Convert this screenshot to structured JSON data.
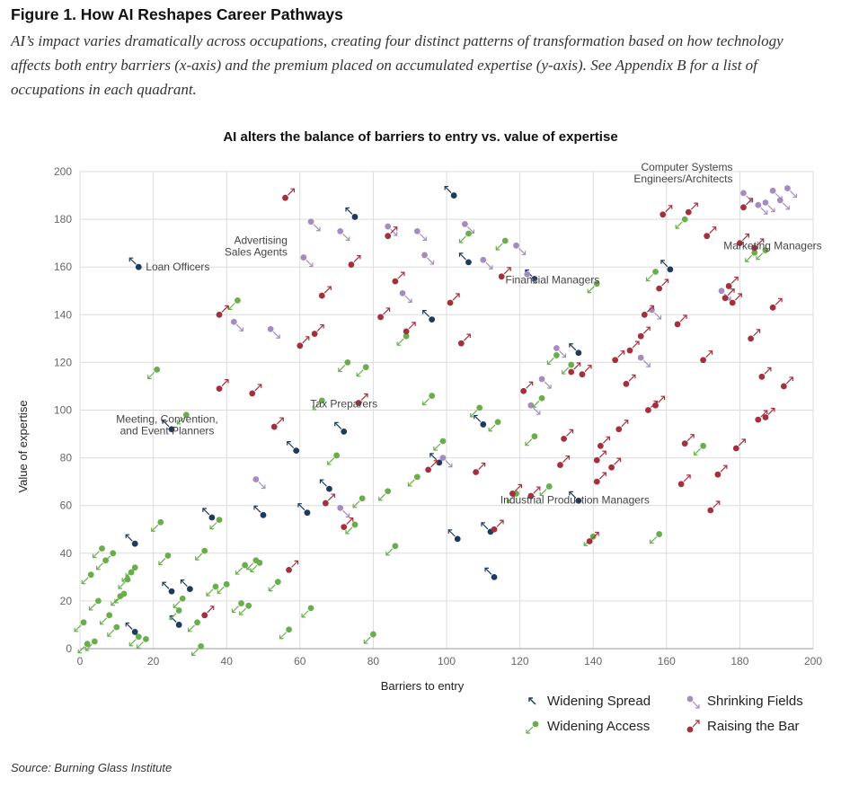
{
  "figure": {
    "title": "Figure 1. How AI Reshapes Career Pathways",
    "subtitle": "AI’s impact varies dramatically across occupations, creating four distinct patterns of transformation based on how technology affects both entry barriers (x-axis) and the premium placed on accumulated expertise (y-axis). See Appendix B for a list of occupations in each quadrant.",
    "source": "Source: Burning Glass Institute"
  },
  "chart_data": {
    "type": "scatter",
    "title": "AI alters the balance of barriers to entry vs. value of expertise",
    "xlabel": "Barriers to entry",
    "ylabel": "Value of expertise",
    "xlim": [
      0,
      200
    ],
    "ylim": [
      0,
      200
    ],
    "xticks": [
      "0",
      "20",
      "40",
      "60",
      "80",
      "100",
      "120",
      "140",
      "160",
      "180",
      "200"
    ],
    "yticks": [
      "0",
      "20",
      "40",
      "60",
      "80",
      "100",
      "120",
      "140",
      "160",
      "180",
      "200"
    ],
    "grid": true,
    "legend_position": "bottom-right",
    "colors": {
      "Widening Spread": "#1f3a5f",
      "Shrinking Fields": "#a48cc0",
      "Widening Access": "#6aae4b",
      "Raising the Bar": "#a3303d"
    },
    "series": [
      {
        "name": "Widening Spread",
        "arrow": "up-left",
        "points": [
          [
            16,
            160
          ],
          [
            25,
            92
          ],
          [
            15,
            44
          ],
          [
            25,
            24
          ],
          [
            15,
            7
          ],
          [
            27,
            10
          ],
          [
            30,
            25
          ],
          [
            36,
            55
          ],
          [
            50,
            56
          ],
          [
            59,
            83
          ],
          [
            62,
            57
          ],
          [
            68,
            67
          ],
          [
            72,
            91
          ],
          [
            75,
            181
          ],
          [
            96,
            138
          ],
          [
            98,
            78
          ],
          [
            102,
            190
          ],
          [
            103,
            46
          ],
          [
            106,
            162
          ],
          [
            110,
            94
          ],
          [
            112,
            49
          ],
          [
            113,
            30
          ],
          [
            124,
            155
          ],
          [
            136,
            124
          ],
          [
            136,
            62
          ],
          [
            161,
            159
          ]
        ]
      },
      {
        "name": "Shrinking Fields",
        "arrow": "down-right",
        "points": [
          [
            42,
            137
          ],
          [
            48,
            71
          ],
          [
            52,
            134
          ],
          [
            61,
            164
          ],
          [
            63,
            179
          ],
          [
            71,
            175
          ],
          [
            71,
            59
          ],
          [
            84,
            177
          ],
          [
            88,
            149
          ],
          [
            92,
            175
          ],
          [
            94,
            165
          ],
          [
            99,
            80
          ],
          [
            105,
            178
          ],
          [
            110,
            163
          ],
          [
            119,
            169
          ],
          [
            122,
            157
          ],
          [
            123,
            102
          ],
          [
            126,
            113
          ],
          [
            130,
            126
          ],
          [
            153,
            122
          ],
          [
            156,
            142
          ],
          [
            175,
            150
          ],
          [
            181,
            191
          ],
          [
            185,
            186
          ],
          [
            187,
            187
          ],
          [
            189,
            192
          ],
          [
            191,
            188
          ],
          [
            193,
            193
          ]
        ]
      },
      {
        "name": "Widening Access",
        "arrow": "down-left",
        "points": [
          [
            1,
            11
          ],
          [
            2,
            2
          ],
          [
            3,
            31
          ],
          [
            4,
            3
          ],
          [
            5,
            20
          ],
          [
            6,
            42
          ],
          [
            7,
            37
          ],
          [
            8,
            14
          ],
          [
            9,
            40
          ],
          [
            10,
            9
          ],
          [
            11,
            22
          ],
          [
            12,
            23
          ],
          [
            13,
            29
          ],
          [
            14,
            32
          ],
          [
            15,
            34
          ],
          [
            16,
            5
          ],
          [
            18,
            4
          ],
          [
            21,
            117
          ],
          [
            22,
            53
          ],
          [
            24,
            39
          ],
          [
            27,
            16
          ],
          [
            28,
            21
          ],
          [
            29,
            98
          ],
          [
            32,
            11
          ],
          [
            33,
            1
          ],
          [
            34,
            41
          ],
          [
            37,
            26
          ],
          [
            38,
            54
          ],
          [
            40,
            27
          ],
          [
            43,
            146
          ],
          [
            44,
            19
          ],
          [
            45,
            35
          ],
          [
            46,
            18
          ],
          [
            48,
            37
          ],
          [
            49,
            36
          ],
          [
            54,
            28
          ],
          [
            57,
            8
          ],
          [
            63,
            17
          ],
          [
            66,
            104
          ],
          [
            70,
            81
          ],
          [
            73,
            120
          ],
          [
            75,
            52
          ],
          [
            77,
            63
          ],
          [
            78,
            118
          ],
          [
            80,
            6
          ],
          [
            84,
            66
          ],
          [
            86,
            43
          ],
          [
            89,
            131
          ],
          [
            92,
            72
          ],
          [
            96,
            106
          ],
          [
            99,
            87
          ],
          [
            106,
            174
          ],
          [
            109,
            101
          ],
          [
            114,
            95
          ],
          [
            116,
            171
          ],
          [
            119,
            65
          ],
          [
            124,
            89
          ],
          [
            126,
            105
          ],
          [
            128,
            68
          ],
          [
            130,
            123
          ],
          [
            134,
            119
          ],
          [
            140,
            47
          ],
          [
            141,
            153
          ],
          [
            157,
            158
          ],
          [
            158,
            48
          ],
          [
            165,
            180
          ],
          [
            170,
            85
          ],
          [
            184,
            166
          ],
          [
            187,
            167
          ]
        ]
      },
      {
        "name": "Raising the Bar",
        "arrow": "up-right",
        "points": [
          [
            34,
            14
          ],
          [
            38,
            140
          ],
          [
            38,
            109
          ],
          [
            47,
            107
          ],
          [
            53,
            93
          ],
          [
            56,
            189
          ],
          [
            57,
            33
          ],
          [
            60,
            127
          ],
          [
            64,
            132
          ],
          [
            66,
            148
          ],
          [
            67,
            61
          ],
          [
            72,
            51
          ],
          [
            74,
            161
          ],
          [
            76,
            103
          ],
          [
            82,
            139
          ],
          [
            84,
            173
          ],
          [
            86,
            154
          ],
          [
            89,
            133
          ],
          [
            95,
            75
          ],
          [
            101,
            145
          ],
          [
            104,
            128
          ],
          [
            108,
            74
          ],
          [
            113,
            50
          ],
          [
            115,
            156
          ],
          [
            118,
            65
          ],
          [
            121,
            108
          ],
          [
            123,
            64
          ],
          [
            131,
            77
          ],
          [
            132,
            88
          ],
          [
            134,
            116
          ],
          [
            137,
            115
          ],
          [
            139,
            45
          ],
          [
            141,
            70
          ],
          [
            141,
            79
          ],
          [
            142,
            85
          ],
          [
            145,
            76
          ],
          [
            146,
            121
          ],
          [
            147,
            92
          ],
          [
            149,
            111
          ],
          [
            150,
            125
          ],
          [
            153,
            131
          ],
          [
            154,
            140
          ],
          [
            155,
            100
          ],
          [
            157,
            102
          ],
          [
            158,
            151
          ],
          [
            159,
            182
          ],
          [
            163,
            136
          ],
          [
            164,
            69
          ],
          [
            165,
            86
          ],
          [
            166,
            183
          ],
          [
            170,
            121
          ],
          [
            171,
            173
          ],
          [
            172,
            58
          ],
          [
            174,
            73
          ],
          [
            176,
            147
          ],
          [
            177,
            152
          ],
          [
            178,
            145
          ],
          [
            179,
            84
          ],
          [
            180,
            170
          ],
          [
            181,
            185
          ],
          [
            183,
            130
          ],
          [
            184,
            168
          ],
          [
            185,
            96
          ],
          [
            186,
            114
          ],
          [
            187,
            97
          ],
          [
            189,
            143
          ],
          [
            192,
            110
          ]
        ]
      }
    ],
    "annotations": [
      {
        "text": "Loan Officers",
        "x": 16,
        "y": 160
      },
      {
        "text": "Advertising Sales Agents",
        "x": 61,
        "y": 164
      },
      {
        "text": "Tax Preparers",
        "x": 72,
        "y": 103
      },
      {
        "text": "Meeting, Convention, and Event Planners",
        "x": 25,
        "y": 92
      },
      {
        "text": "Computer Systems Engineers/Architects",
        "x": 181,
        "y": 191
      },
      {
        "text": "Financial Managers",
        "x": 124,
        "y": 155
      },
      {
        "text": "Marketing Managers",
        "x": 187,
        "y": 167
      },
      {
        "text": "Industrial Production Managers",
        "x": 136,
        "y": 62
      }
    ]
  }
}
